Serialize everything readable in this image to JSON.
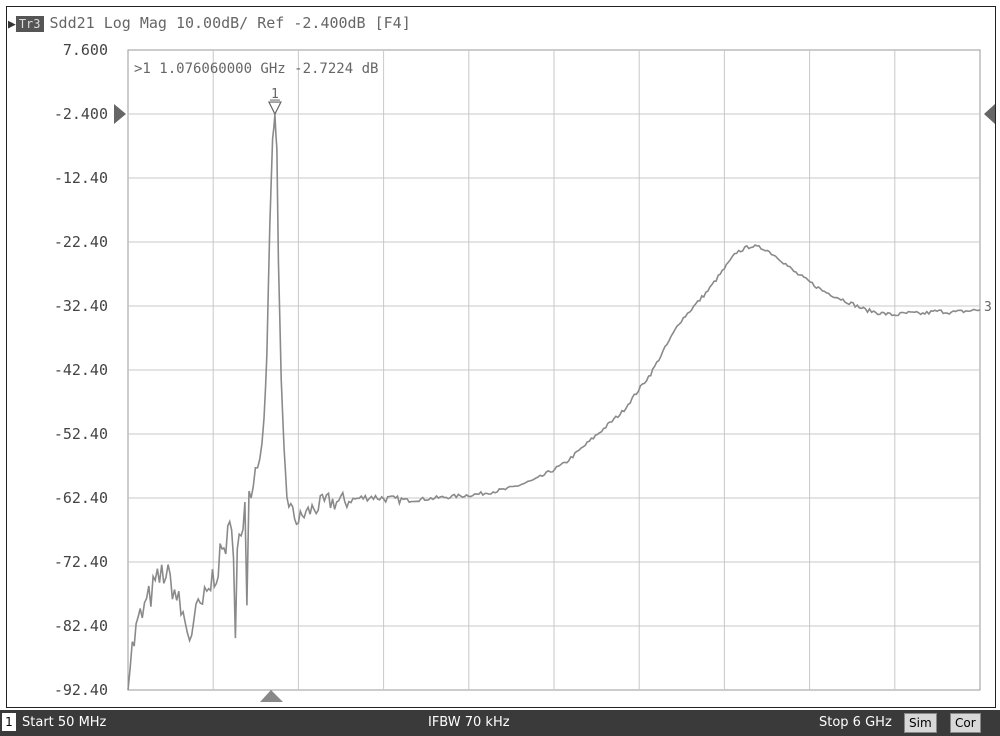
{
  "trace_header": {
    "badge": "Tr3",
    "text": "Sdd21 Log Mag 10.00dB/ Ref -2.400dB [F4]"
  },
  "marker": {
    "label": "1",
    "readout": ">1  1.076060000 GHz -2.7224 dB",
    "freq_ghz": 1.07606,
    "value_db": -2.7224
  },
  "trace_end_label": "3",
  "status_bar": {
    "channel": "1",
    "start": "Start 50 MHz",
    "ifbw": "IFBW 70 kHz",
    "stop": "Stop 6 GHz",
    "sim": "Sim",
    "cor": "Cor"
  },
  "colors": {
    "trace": "#8a8a8a",
    "grid": "#c8c8c8",
    "status_bg": "#3a3a3a"
  },
  "chart_data": {
    "type": "line",
    "title": "Sdd21 Log Mag 10.00dB/ Ref -2.400dB [F4]",
    "xlabel": "",
    "ylabel": "",
    "xlim": [
      0.05,
      6.0
    ],
    "ylim": [
      -92.4,
      7.6
    ],
    "ref_level": -2.4,
    "y_ticks": [
      "7.600",
      "-2.400",
      "-12.40",
      "-22.40",
      "-32.40",
      "-42.40",
      "-52.40",
      "-62.40",
      "-72.40",
      "-82.40",
      "-92.40"
    ],
    "grid": true,
    "series": [
      {
        "x": [
          0.05,
          0.08,
          0.12,
          0.18,
          0.24,
          0.3,
          0.36,
          0.42,
          0.48,
          0.54,
          0.6,
          0.64,
          0.68,
          0.72,
          0.76,
          0.8,
          0.84,
          0.88,
          0.91,
          0.94,
          0.97,
          1.0,
          1.02,
          1.04,
          1.06,
          1.076,
          1.09,
          1.1,
          1.12,
          1.14,
          1.16,
          1.2,
          1.24,
          1.28,
          1.35,
          1.45,
          1.55,
          1.65,
          1.75,
          1.85,
          2.0,
          2.15,
          2.3,
          2.5,
          2.7,
          2.9,
          3.1,
          3.3,
          3.5,
          3.7,
          3.9,
          4.1,
          4.3,
          4.4,
          4.5,
          4.6,
          4.7,
          4.8,
          4.9,
          5.0,
          5.1,
          5.2,
          5.3,
          5.4,
          5.5,
          5.6,
          5.7,
          5.8,
          5.9,
          6.0
        ],
        "y": [
          -90,
          -86,
          -82,
          -79,
          -76,
          -74,
          -76,
          -80,
          -84,
          -80,
          -78,
          -75,
          -73,
          -70,
          -68,
          -70,
          -67,
          -64,
          -60,
          -58,
          -55,
          -50,
          -40,
          -20,
          -6,
          -2.72,
          -8,
          -25,
          -44,
          -55,
          -62,
          -65,
          -66,
          -65,
          -64,
          -63,
          -63,
          -62.5,
          -62.2,
          -62.5,
          -62.8,
          -62.5,
          -62.2,
          -61.8,
          -61,
          -59.5,
          -57,
          -53,
          -49,
          -43,
          -35,
          -30,
          -24,
          -23,
          -23.5,
          -25,
          -27,
          -28.5,
          -30,
          -31,
          -32,
          -33,
          -33.5,
          -33.8,
          -33.5,
          -33.6,
          -33.2,
          -33.4,
          -33.2,
          -33.0
        ]
      }
    ]
  }
}
